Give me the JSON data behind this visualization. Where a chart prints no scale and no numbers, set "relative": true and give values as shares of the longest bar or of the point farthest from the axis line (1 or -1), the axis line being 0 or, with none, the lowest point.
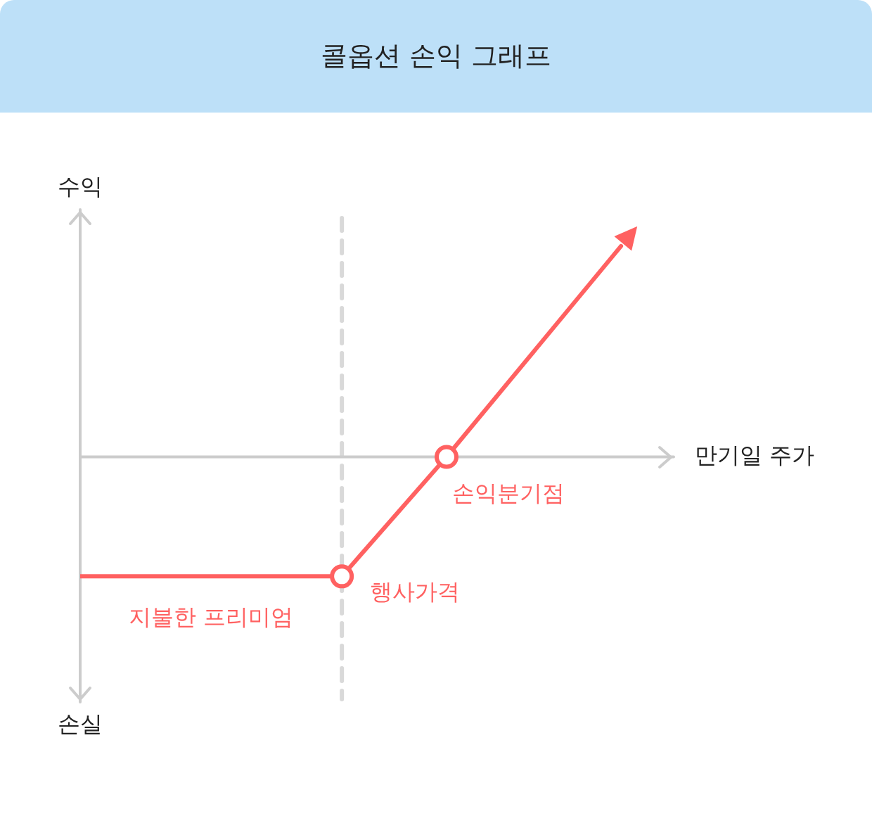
{
  "chart_data": {
    "type": "line",
    "title": "콜옵션 손익 그래프",
    "xlabel": "만기일 주가",
    "ylabel": "수익",
    "relative": true,
    "marker": "circle",
    "categories": [
      null,
      null,
      null,
      null,
      null,
      null,
      null,
      null,
      null,
      null,
      null,
      null,
      null,
      null,
      null,
      null,
      null,
      null,
      null,
      null,
      null,
      null,
      null,
      null,
      null,
      null,
      null,
      null,
      null,
      null,
      null,
      null
    ],
    "series": [
      {
        "color": "#ff6161",
        "values": [
          -0.567,
          null,
          null,
          null,
          null,
          null,
          null,
          null,
          null,
          null,
          null,
          null,
          null,
          null,
          null,
          -0.567,
          null,
          null,
          null,
          null,
          null,
          0,
          null,
          null,
          null,
          null,
          null,
          null,
          null,
          null,
          null,
          1
        ]
      }
    ],
    "ref_lines": [
      {
        "axis": "x",
        "color": "#d9d9d9",
        "line_style": "dashed"
      }
    ],
    "annotations": [
      "손실",
      "행사가격",
      "손익분기점",
      "지불한 프리미엄"
    ]
  }
}
